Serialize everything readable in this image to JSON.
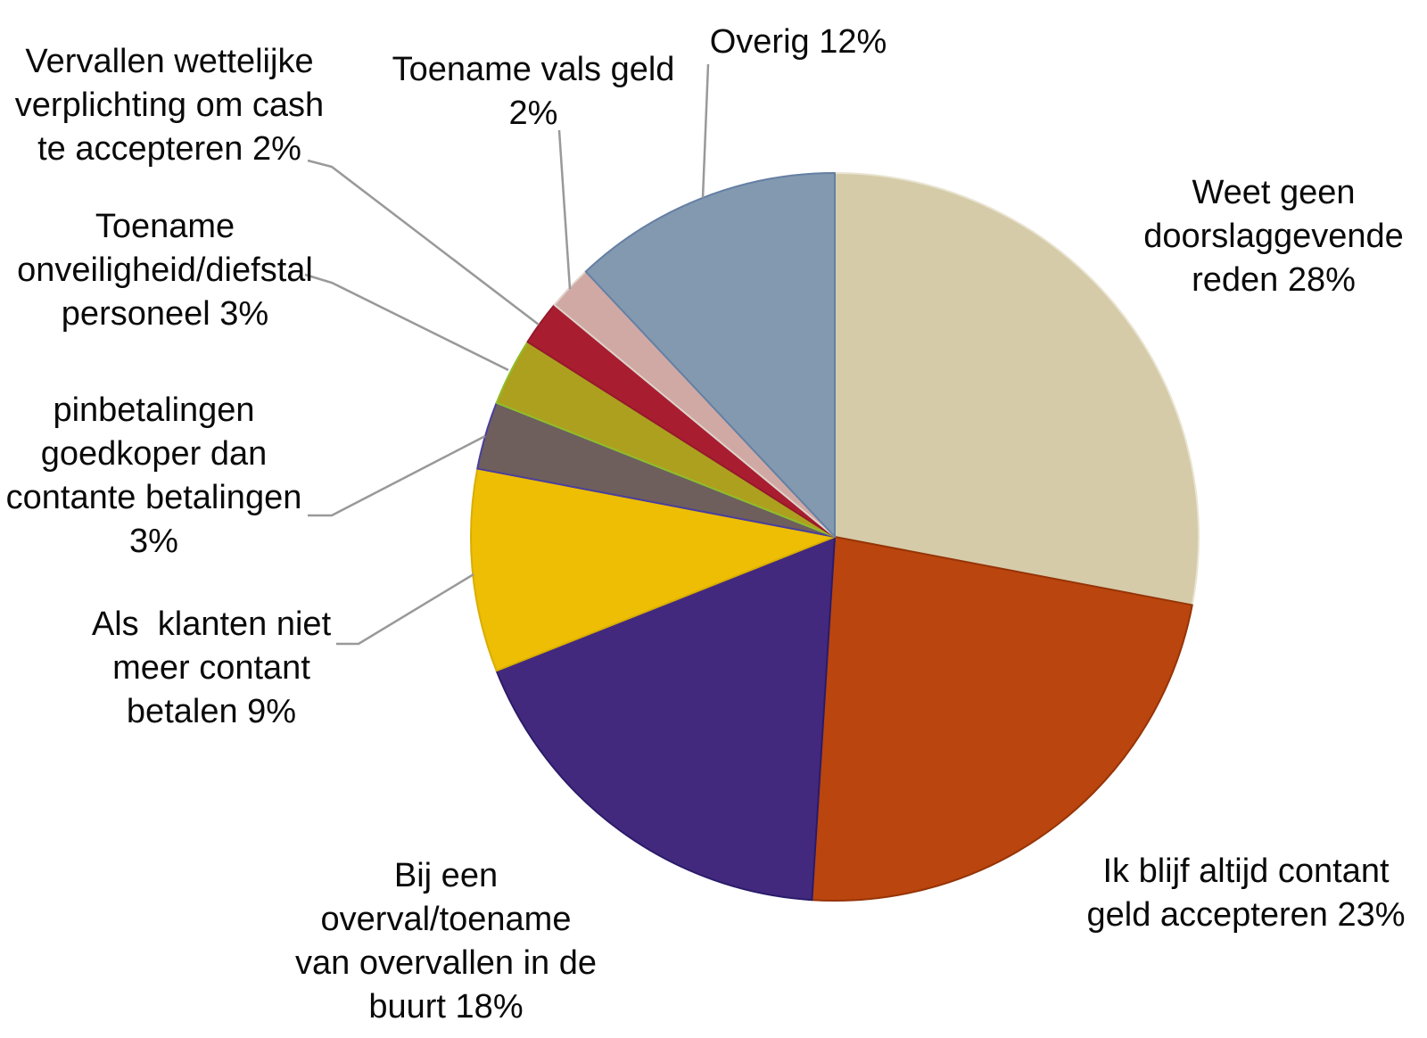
{
  "chart_data": {
    "type": "pie",
    "title": "",
    "unit": "%",
    "total": 100,
    "start_angle_deg": 0,
    "direction": "clockwise",
    "legend": "none (direct slice labels with leader lines)",
    "slices": [
      {
        "name": "weet-geen",
        "label": "Weet geen doorslaggevende reden",
        "pct": 28,
        "color": "#D5CBA8",
        "border": "#E9E4D2"
      },
      {
        "name": "ik-blijf",
        "label": "Ik blijf altijd contant geld accepteren",
        "pct": 23,
        "color": "#BA450E",
        "border": "#963407"
      },
      {
        "name": "bij-een-overval",
        "label": "Bij een overval/toename van overvallen in de buurt",
        "pct": 18,
        "color": "#43297E",
        "border": "#2B1B69"
      },
      {
        "name": "als-klanten",
        "label": "Als klanten niet meer contant betalen",
        "pct": 9,
        "color": "#EDBE04",
        "border": "#D9AE00"
      },
      {
        "name": "pinbetalingen",
        "label": "pinbetalingen goedkoper dan contante betalingen",
        "pct": 3,
        "color": "#6E5F5C",
        "border": "#4A3E9E"
      },
      {
        "name": "onveiligheid",
        "label": "Toename onveiligheid/diefstal personeel",
        "pct": 3,
        "color": "#ADA01E",
        "border": "#8FBE2C"
      },
      {
        "name": "vervallen",
        "label": "Vervallen wettelijke verplichting om cash te accepteren",
        "pct": 2,
        "color": "#A81E30",
        "border": "#97182B"
      },
      {
        "name": "vals-geld",
        "label": "Toename vals geld",
        "pct": 2,
        "color": "#D0A9A4",
        "border": "#DFD3CB"
      },
      {
        "name": "overig",
        "label": "Overig",
        "pct": 12,
        "color": "#8399B0",
        "border": "#647FA3"
      }
    ]
  },
  "labels": {
    "vervallen": "Vervallen wettelijke\nverplichting om cash\nte accepteren 2%",
    "onveiligheid": "Toename\nonveiligheid/diefstal\npersoneel 3%",
    "pinbetalingen": "pinbetalingen\ngoedkoper dan\ncontante betalingen\n3%",
    "als_klanten": "Als  klanten niet\nmeer contant\nbetalen 9%",
    "vals_geld": "Toename vals geld\n2%",
    "overig": "Overig 12%",
    "weet_geen": "Weet geen\ndoorslaggevende\nreden 28%",
    "ik_blijf": "Ik blijf altijd contant\ngeld accepteren 23%",
    "bij_een": "Bij een\noverval/toename\nvan overvallen in de\nbuurt 18%"
  },
  "colors": {
    "background": "#FFFFFF",
    "leader_line": "#999999",
    "label_text": "#0A0A0A"
  }
}
